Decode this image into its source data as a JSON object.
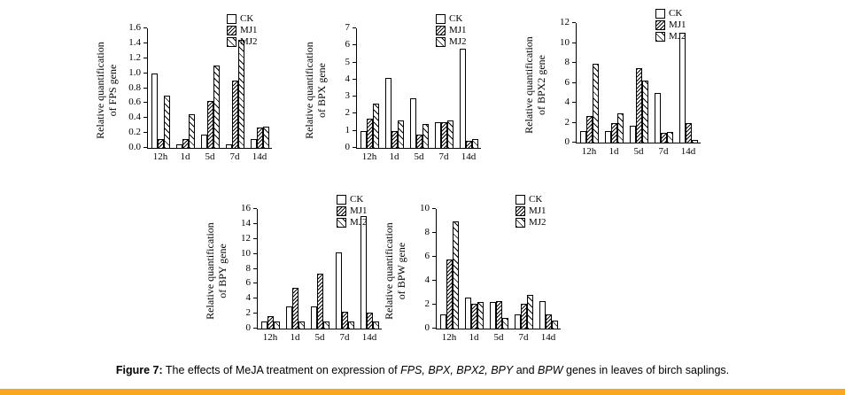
{
  "figure": {
    "caption_segments": [
      {
        "text": "Figure 7:",
        "bold": true,
        "italic": false
      },
      {
        "text": " The effects of MeJA treatment on expression of ",
        "bold": false,
        "italic": false
      },
      {
        "text": "FPS, BPX, BPX2, BPY",
        "bold": false,
        "italic": true
      },
      {
        "text": " and ",
        "bold": false,
        "italic": false
      },
      {
        "text": "BPW",
        "bold": false,
        "italic": true
      },
      {
        "text": " genes in leaves of birch saplings.",
        "bold": false,
        "italic": false
      }
    ],
    "background": "#FFFFFF",
    "text_color": "#000000",
    "footer_color": "#F7A81F"
  },
  "chart_data": [
    {
      "type": "bar",
      "gene": "FPS",
      "ylabel": "Relative quantification of FPS gene",
      "ylabel_lines": [
        "Relative quantification",
        "of FPS gene"
      ],
      "xlabel": "",
      "categories": [
        "12h",
        "1d",
        "5d",
        "7d",
        "14d"
      ],
      "series": [
        {
          "name": "CK",
          "pattern": "plain",
          "values": [
            1.0,
            0.05,
            0.18,
            0.05,
            0.12
          ]
        },
        {
          "name": "MJ1",
          "pattern": "dense-hatch",
          "values": [
            0.12,
            0.12,
            0.63,
            0.9,
            0.27
          ]
        },
        {
          "name": "MJ2",
          "pattern": "light-hatch",
          "values": [
            0.7,
            0.45,
            1.1,
            1.45,
            0.28
          ]
        }
      ],
      "ylim": [
        0,
        1.6
      ],
      "ytick_step": 0.2,
      "ytick_decimals": 1,
      "grid": false,
      "legend_position": "top-right"
    },
    {
      "type": "bar",
      "gene": "BPX",
      "ylabel": "Relative quantification of BPX gene",
      "ylabel_lines": [
        "Relative quantification",
        "of BPX gene"
      ],
      "xlabel": "",
      "categories": [
        "12h",
        "1d",
        "5d",
        "7d",
        "14d"
      ],
      "series": [
        {
          "name": "CK",
          "pattern": "plain",
          "values": [
            1.0,
            4.1,
            2.9,
            1.5,
            5.8
          ]
        },
        {
          "name": "MJ1",
          "pattern": "dense-hatch",
          "values": [
            1.7,
            1.0,
            0.8,
            1.5,
            0.4
          ]
        },
        {
          "name": "MJ2",
          "pattern": "light-hatch",
          "values": [
            2.6,
            1.6,
            1.4,
            1.6,
            0.5
          ]
        }
      ],
      "ylim": [
        0,
        7
      ],
      "ytick_step": 1,
      "ytick_decimals": 0,
      "grid": false,
      "legend_position": "top-right"
    },
    {
      "type": "bar",
      "gene": "BPX2",
      "ylabel": "Relative quantification of BPX2 gene",
      "ylabel_lines": [
        "Relative quantification",
        "of BPX2 gene"
      ],
      "xlabel": "",
      "categories": [
        "12h",
        "1d",
        "5d",
        "7d",
        "14d"
      ],
      "series": [
        {
          "name": "CK",
          "pattern": "plain",
          "values": [
            1.2,
            1.2,
            1.7,
            5.0,
            11.0
          ]
        },
        {
          "name": "MJ1",
          "pattern": "dense-hatch",
          "values": [
            2.7,
            2.0,
            7.5,
            1.0,
            2.0
          ]
        },
        {
          "name": "MJ2",
          "pattern": "light-hatch",
          "values": [
            7.9,
            2.9,
            6.2,
            1.1,
            0.3
          ]
        }
      ],
      "ylim": [
        0,
        12
      ],
      "ytick_step": 2,
      "ytick_decimals": 0,
      "grid": false,
      "legend_position": "top-right"
    },
    {
      "type": "bar",
      "gene": "BPY",
      "ylabel": "Relative quantification of BPY gene",
      "ylabel_lines": [
        "Relative quantification",
        "of BPY gene"
      ],
      "xlabel": "",
      "categories": [
        "12h",
        "1d",
        "5d",
        "7d",
        "14d"
      ],
      "series": [
        {
          "name": "CK",
          "pattern": "plain",
          "values": [
            1.0,
            3.0,
            3.0,
            10.2,
            15.0
          ]
        },
        {
          "name": "MJ1",
          "pattern": "dense-hatch",
          "values": [
            1.7,
            5.4,
            7.4,
            2.3,
            2.1
          ]
        },
        {
          "name": "MJ2",
          "pattern": "light-hatch",
          "values": [
            0.9,
            1.0,
            1.0,
            1.0,
            0.9
          ]
        }
      ],
      "ylim": [
        0,
        16
      ],
      "ytick_step": 2,
      "ytick_decimals": 0,
      "grid": false,
      "legend_position": "top-right"
    },
    {
      "type": "bar",
      "gene": "BPW",
      "ylabel": "Relative quantification of BPW gene",
      "ylabel_lines": [
        "Relative quantification",
        "of BPW gene"
      ],
      "xlabel": "",
      "categories": [
        "12h",
        "1d",
        "5d",
        "7d",
        "14d"
      ],
      "series": [
        {
          "name": "CK",
          "pattern": "plain",
          "values": [
            1.2,
            2.6,
            2.2,
            1.2,
            2.3
          ]
        },
        {
          "name": "MJ1",
          "pattern": "dense-hatch",
          "values": [
            5.8,
            2.1,
            2.3,
            2.1,
            1.2
          ]
        },
        {
          "name": "MJ2",
          "pattern": "light-hatch",
          "values": [
            9.0,
            2.2,
            0.9,
            2.8,
            0.7
          ]
        }
      ],
      "ylim": [
        0,
        10
      ],
      "ytick_step": 2,
      "ytick_decimals": 0,
      "grid": false,
      "legend_position": "top-right"
    }
  ]
}
